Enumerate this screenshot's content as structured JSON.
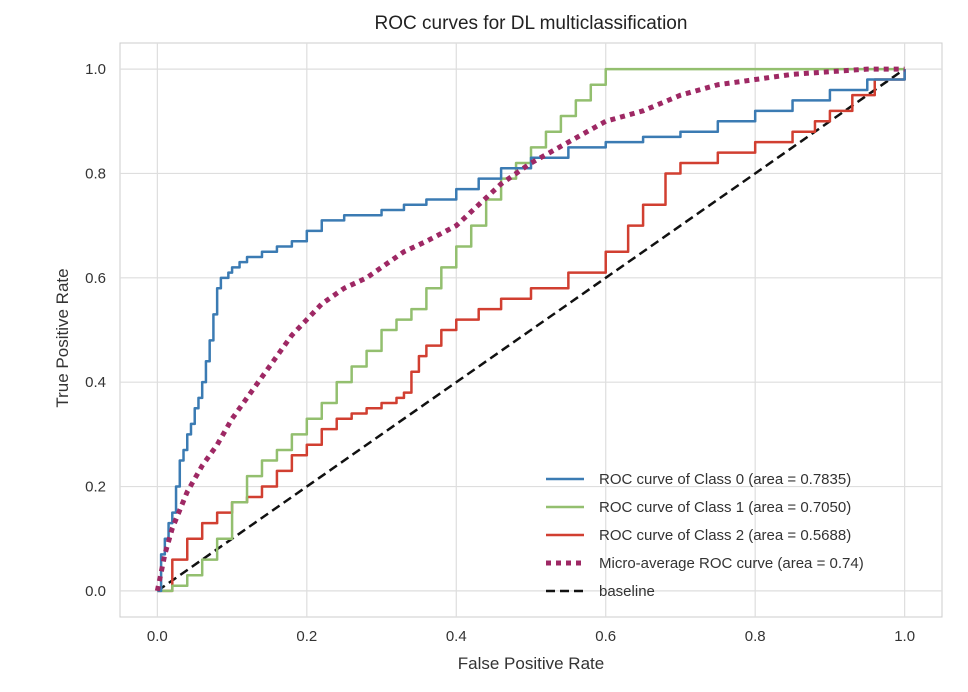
{
  "chart_data": {
    "type": "line",
    "title": "ROC curves for DL multiclassification",
    "xlabel": "False Positive Rate",
    "ylabel": "True Positive Rate",
    "xlim": [
      -0.05,
      1.05
    ],
    "ylim": [
      -0.05,
      1.05
    ],
    "xticks": [
      "0.0",
      "0.2",
      "0.4",
      "0.6",
      "0.8",
      "1.0"
    ],
    "yticks": [
      "0.0",
      "0.2",
      "0.4",
      "0.6",
      "0.8",
      "1.0"
    ],
    "grid": true,
    "legend_position": "lower-right",
    "series": [
      {
        "name": "ROC curve of Class 0 (area = 0.7835)",
        "color": "#3b7bb3",
        "style": "solid",
        "x": [
          0,
          0.005,
          0.01,
          0.015,
          0.02,
          0.025,
          0.03,
          0.035,
          0.04,
          0.045,
          0.05,
          0.055,
          0.06,
          0.065,
          0.07,
          0.075,
          0.08,
          0.085,
          0.09,
          0.095,
          0.1,
          0.11,
          0.12,
          0.14,
          0.16,
          0.18,
          0.2,
          0.22,
          0.25,
          0.28,
          0.3,
          0.33,
          0.36,
          0.4,
          0.43,
          0.46,
          0.5,
          0.55,
          0.6,
          0.65,
          0.7,
          0.75,
          0.8,
          0.85,
          0.9,
          0.95,
          1.0
        ],
        "y": [
          0,
          0.07,
          0.1,
          0.13,
          0.15,
          0.2,
          0.25,
          0.27,
          0.3,
          0.32,
          0.35,
          0.37,
          0.4,
          0.44,
          0.48,
          0.53,
          0.58,
          0.6,
          0.6,
          0.61,
          0.62,
          0.63,
          0.64,
          0.65,
          0.66,
          0.67,
          0.69,
          0.71,
          0.72,
          0.72,
          0.73,
          0.74,
          0.75,
          0.77,
          0.79,
          0.81,
          0.83,
          0.85,
          0.86,
          0.87,
          0.88,
          0.9,
          0.92,
          0.94,
          0.96,
          0.98,
          1.0
        ]
      },
      {
        "name": "ROC curve of Class 1 (area = 0.7050)",
        "color": "#93bf6f",
        "style": "solid",
        "x": [
          0,
          0.02,
          0.04,
          0.06,
          0.08,
          0.1,
          0.12,
          0.14,
          0.16,
          0.18,
          0.2,
          0.22,
          0.24,
          0.26,
          0.28,
          0.3,
          0.32,
          0.34,
          0.36,
          0.38,
          0.4,
          0.42,
          0.44,
          0.46,
          0.48,
          0.5,
          0.52,
          0.54,
          0.56,
          0.58,
          0.6,
          0.65,
          0.7,
          0.8,
          0.9,
          1.0
        ],
        "y": [
          0,
          0.01,
          0.03,
          0.06,
          0.1,
          0.17,
          0.22,
          0.25,
          0.27,
          0.3,
          0.33,
          0.36,
          0.4,
          0.43,
          0.46,
          0.5,
          0.52,
          0.54,
          0.58,
          0.62,
          0.66,
          0.7,
          0.75,
          0.79,
          0.82,
          0.85,
          0.88,
          0.91,
          0.94,
          0.97,
          1.0,
          1.0,
          1.0,
          1.0,
          1.0,
          1.0
        ]
      },
      {
        "name": "ROC curve of Class 2 (area = 0.5688)",
        "color": "#d13f31",
        "style": "solid",
        "x": [
          0,
          0.02,
          0.04,
          0.06,
          0.08,
          0.1,
          0.12,
          0.14,
          0.16,
          0.18,
          0.2,
          0.22,
          0.24,
          0.26,
          0.28,
          0.3,
          0.32,
          0.33,
          0.34,
          0.35,
          0.36,
          0.38,
          0.4,
          0.43,
          0.46,
          0.5,
          0.55,
          0.6,
          0.63,
          0.65,
          0.68,
          0.7,
          0.75,
          0.8,
          0.85,
          0.88,
          0.9,
          0.93,
          0.96,
          1.0
        ],
        "y": [
          0,
          0.06,
          0.1,
          0.13,
          0.15,
          0.17,
          0.18,
          0.2,
          0.23,
          0.26,
          0.28,
          0.31,
          0.33,
          0.34,
          0.35,
          0.36,
          0.37,
          0.38,
          0.42,
          0.45,
          0.47,
          0.5,
          0.52,
          0.54,
          0.56,
          0.58,
          0.61,
          0.65,
          0.7,
          0.74,
          0.8,
          0.82,
          0.84,
          0.86,
          0.88,
          0.9,
          0.92,
          0.95,
          0.98,
          1.0
        ]
      },
      {
        "name": "Micro-average ROC curve (area = 0.74)",
        "color": "#9e2864",
        "style": "dotted",
        "x": [
          0,
          0.01,
          0.02,
          0.04,
          0.06,
          0.08,
          0.1,
          0.12,
          0.15,
          0.18,
          0.2,
          0.22,
          0.25,
          0.28,
          0.3,
          0.33,
          0.36,
          0.4,
          0.43,
          0.46,
          0.5,
          0.55,
          0.6,
          0.65,
          0.7,
          0.75,
          0.8,
          0.85,
          0.9,
          0.95,
          1.0
        ],
        "y": [
          0,
          0.07,
          0.12,
          0.19,
          0.24,
          0.28,
          0.33,
          0.37,
          0.43,
          0.49,
          0.52,
          0.55,
          0.58,
          0.6,
          0.62,
          0.65,
          0.67,
          0.7,
          0.74,
          0.78,
          0.82,
          0.86,
          0.9,
          0.92,
          0.95,
          0.97,
          0.98,
          0.99,
          0.995,
          1.0,
          1.0
        ]
      },
      {
        "name": "baseline",
        "color": "#111111",
        "style": "dashed",
        "x": [
          0,
          1
        ],
        "y": [
          0,
          1
        ]
      }
    ]
  }
}
